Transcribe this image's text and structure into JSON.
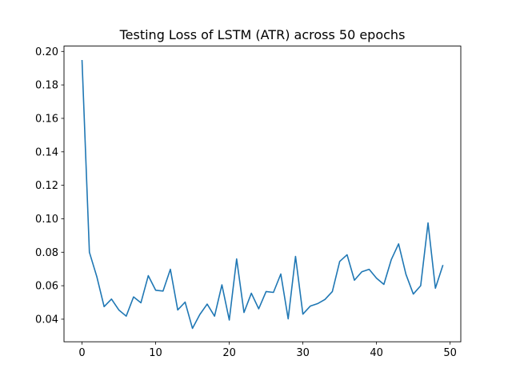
{
  "chart_data": {
    "type": "line",
    "title": "Testing Loss of LSTM (ATR) across 50 epochs",
    "xlabel": "",
    "ylabel": "",
    "xlim": [
      -2.45,
      51.45
    ],
    "ylim": [
      0.0265,
      0.2032
    ],
    "xticks": [
      0,
      10,
      20,
      30,
      40,
      50
    ],
    "xtick_labels": [
      "0",
      "10",
      "20",
      "30",
      "40",
      "50"
    ],
    "yticks": [
      0.04,
      0.06,
      0.08,
      0.1,
      0.12,
      0.14,
      0.16,
      0.18,
      0.2
    ],
    "ytick_labels": [
      "0.04",
      "0.06",
      "0.08",
      "0.10",
      "0.12",
      "0.14",
      "0.16",
      "0.18",
      "0.20"
    ],
    "grid": false,
    "legend": "none",
    "series": [
      {
        "color": "#1f77b4",
        "x": [
          0,
          1,
          2,
          3,
          4,
          5,
          6,
          7,
          8,
          9,
          10,
          11,
          12,
          13,
          14,
          15,
          16,
          17,
          18,
          19,
          20,
          21,
          22,
          23,
          24,
          25,
          26,
          27,
          28,
          29,
          30,
          31,
          32,
          33,
          34,
          35,
          36,
          37,
          38,
          39,
          40,
          41,
          42,
          43,
          44,
          45,
          46,
          47,
          48,
          49
        ],
        "values": [
          0.1945,
          0.08,
          0.0655,
          0.0475,
          0.052,
          0.0455,
          0.0418,
          0.0533,
          0.0498,
          0.066,
          0.0573,
          0.0568,
          0.0698,
          0.0455,
          0.0502,
          0.0345,
          0.0428,
          0.049,
          0.0418,
          0.0605,
          0.0395,
          0.076,
          0.044,
          0.0555,
          0.0462,
          0.0565,
          0.056,
          0.067,
          0.0402,
          0.0775,
          0.043,
          0.0478,
          0.0493,
          0.0518,
          0.0565,
          0.0745,
          0.0785,
          0.0633,
          0.0683,
          0.0698,
          0.0645,
          0.0608,
          0.0755,
          0.085,
          0.0668,
          0.055,
          0.06,
          0.0975,
          0.0585,
          0.072
        ]
      }
    ]
  }
}
